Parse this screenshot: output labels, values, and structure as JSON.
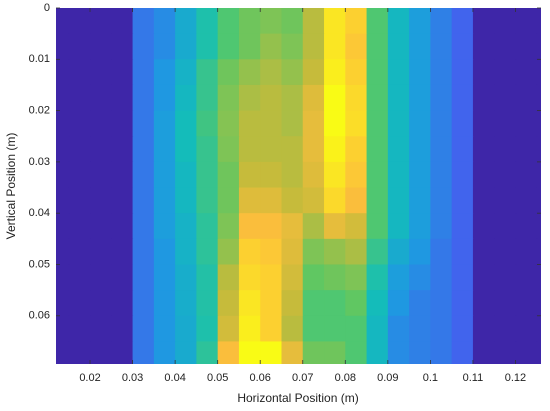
{
  "chart_data": {
    "type": "heatmap",
    "x_label": "Horizontal Position (m)",
    "y_label": "Vertical Position (m)",
    "xlim": [
      0.012,
      0.126
    ],
    "ylim": [
      0,
      0.0694
    ],
    "y_reversed": true,
    "xticks": [
      0.02,
      0.03,
      0.04,
      0.05,
      0.06,
      0.07,
      0.08,
      0.09,
      0.1,
      0.11,
      0.12
    ],
    "yticks": [
      0,
      0.01,
      0.02,
      0.03,
      0.04,
      0.05,
      0.06
    ],
    "clim": [
      0,
      1
    ],
    "colormap": [
      "#3e26a8",
      "#4361ee",
      "#1e9ae0",
      "#13beb8",
      "#5ac864",
      "#c4bb3b",
      "#fdbe3c",
      "#f9fb15"
    ],
    "x": [
      0.0125,
      0.0175,
      0.0225,
      0.0275,
      0.0325,
      0.0375,
      0.0425,
      0.0475,
      0.0525,
      0.0575,
      0.0625,
      0.0675,
      0.0725,
      0.0775,
      0.0825,
      0.0875,
      0.0925,
      0.0975,
      0.1025,
      0.1075,
      0.1125,
      0.1175,
      0.1225,
      0.1275
    ],
    "y": [
      0.0025,
      0.0075,
      0.0125,
      0.0175,
      0.0225,
      0.0275,
      0.0325,
      0.0375,
      0.0425,
      0.0475,
      0.0525,
      0.0575,
      0.0625,
      0.0675
    ],
    "z": [
      [
        0,
        0,
        0,
        0,
        0.2,
        0.25,
        0.35,
        0.45,
        0.55,
        0.6,
        0.62,
        0.6,
        0.7,
        0.95,
        0.9,
        0.55,
        0.4,
        0.3,
        0.22,
        0.15,
        0,
        0,
        0,
        0
      ],
      [
        0,
        0,
        0,
        0,
        0.2,
        0.25,
        0.35,
        0.45,
        0.55,
        0.6,
        0.65,
        0.62,
        0.7,
        0.95,
        0.88,
        0.55,
        0.4,
        0.3,
        0.22,
        0.15,
        0,
        0,
        0,
        0
      ],
      [
        0,
        0,
        0,
        0,
        0.2,
        0.28,
        0.38,
        0.5,
        0.6,
        0.65,
        0.68,
        0.65,
        0.72,
        0.97,
        0.9,
        0.55,
        0.4,
        0.3,
        0.22,
        0.15,
        0,
        0,
        0,
        0
      ],
      [
        0,
        0,
        0,
        0,
        0.2,
        0.28,
        0.4,
        0.5,
        0.62,
        0.68,
        0.7,
        0.68,
        0.78,
        1,
        0.92,
        0.55,
        0.4,
        0.3,
        0.22,
        0.15,
        0,
        0,
        0,
        0
      ],
      [
        0,
        0,
        0,
        0,
        0.2,
        0.3,
        0.42,
        0.52,
        0.63,
        0.7,
        0.7,
        0.68,
        0.8,
        1,
        0.93,
        0.55,
        0.4,
        0.3,
        0.22,
        0.15,
        0,
        0,
        0,
        0
      ],
      [
        0,
        0,
        0,
        0,
        0.2,
        0.3,
        0.42,
        0.5,
        0.62,
        0.7,
        0.7,
        0.7,
        0.8,
        0.98,
        0.9,
        0.55,
        0.4,
        0.3,
        0.22,
        0.15,
        0,
        0,
        0,
        0
      ],
      [
        0,
        0,
        0,
        0,
        0.2,
        0.3,
        0.4,
        0.5,
        0.6,
        0.72,
        0.72,
        0.7,
        0.78,
        0.95,
        0.88,
        0.55,
        0.4,
        0.3,
        0.22,
        0.15,
        0,
        0,
        0,
        0
      ],
      [
        0,
        0,
        0,
        0,
        0.2,
        0.3,
        0.4,
        0.5,
        0.6,
        0.78,
        0.78,
        0.72,
        0.75,
        0.92,
        0.85,
        0.55,
        0.4,
        0.3,
        0.22,
        0.15,
        0,
        0,
        0,
        0
      ],
      [
        0,
        0,
        0,
        0,
        0.2,
        0.3,
        0.38,
        0.48,
        0.62,
        0.85,
        0.85,
        0.8,
        0.68,
        0.8,
        0.75,
        0.55,
        0.4,
        0.3,
        0.22,
        0.15,
        0,
        0,
        0,
        0
      ],
      [
        0,
        0,
        0,
        0,
        0.2,
        0.28,
        0.38,
        0.48,
        0.65,
        0.9,
        0.88,
        0.78,
        0.62,
        0.65,
        0.68,
        0.5,
        0.35,
        0.28,
        0.2,
        0.15,
        0,
        0,
        0,
        0
      ],
      [
        0,
        0,
        0,
        0,
        0.2,
        0.28,
        0.36,
        0.46,
        0.7,
        0.92,
        0.9,
        0.75,
        0.58,
        0.6,
        0.62,
        0.45,
        0.3,
        0.25,
        0.2,
        0.15,
        0,
        0,
        0,
        0
      ],
      [
        0,
        0,
        0,
        0,
        0.2,
        0.28,
        0.36,
        0.46,
        0.72,
        0.95,
        0.9,
        0.72,
        0.55,
        0.55,
        0.58,
        0.42,
        0.28,
        0.22,
        0.2,
        0.15,
        0,
        0,
        0,
        0
      ],
      [
        0,
        0,
        0,
        0,
        0.2,
        0.28,
        0.35,
        0.45,
        0.75,
        0.97,
        0.9,
        0.7,
        0.55,
        0.55,
        0.55,
        0.4,
        0.25,
        0.22,
        0.2,
        0.15,
        0,
        0,
        0,
        0
      ],
      [
        0,
        0,
        0,
        0,
        0.2,
        0.28,
        0.35,
        0.48,
        0.85,
        1,
        1,
        0.8,
        0.6,
        0.6,
        0.55,
        0.4,
        0.25,
        0.22,
        0.2,
        0.15,
        0,
        0,
        0,
        0
      ]
    ]
  }
}
